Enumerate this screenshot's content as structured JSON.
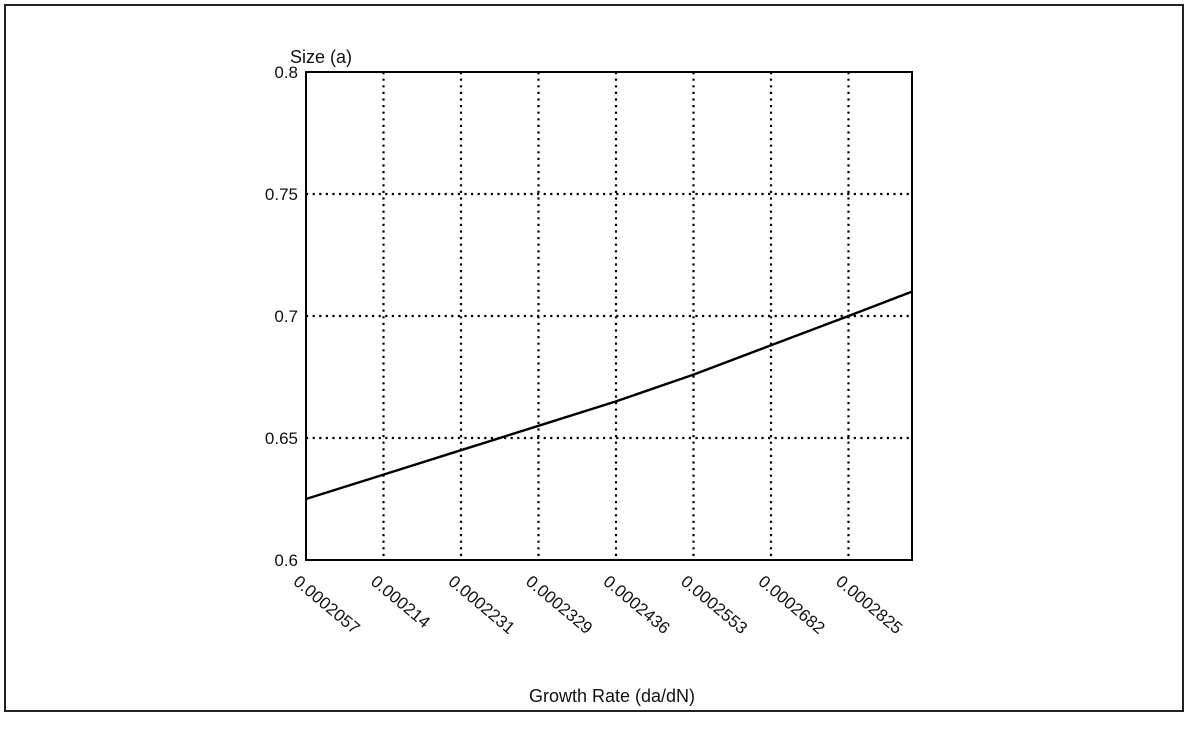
{
  "chart_data": {
    "type": "line",
    "ylabel": "Size (a)",
    "xlabel": "Growth Rate (da/dN)",
    "x_tick_labels": [
      "0.0002057",
      "0.000214",
      "0.0002231",
      "0.0002329",
      "0.0002436",
      "0.0002553",
      "0.0002682",
      "0.0002825"
    ],
    "y_tick_labels": [
      "0.6",
      "0.65",
      "0.7",
      "0.75",
      "0.8"
    ],
    "ylim": [
      0.6,
      0.8
    ],
    "grid": true,
    "grid_style": "dotted",
    "series": [
      {
        "x": [
          "0.0002057",
          "0.000214",
          "0.0002231",
          "0.0002329",
          "0.0002436",
          "0.0002553",
          "0.0002682",
          "0.0002825"
        ],
        "values": [
          0.625,
          0.635,
          0.645,
          0.655,
          0.665,
          0.676,
          0.688,
          0.7
        ],
        "x_end": 0.0002905,
        "y_end": 0.71,
        "color": "#000000"
      }
    ]
  }
}
